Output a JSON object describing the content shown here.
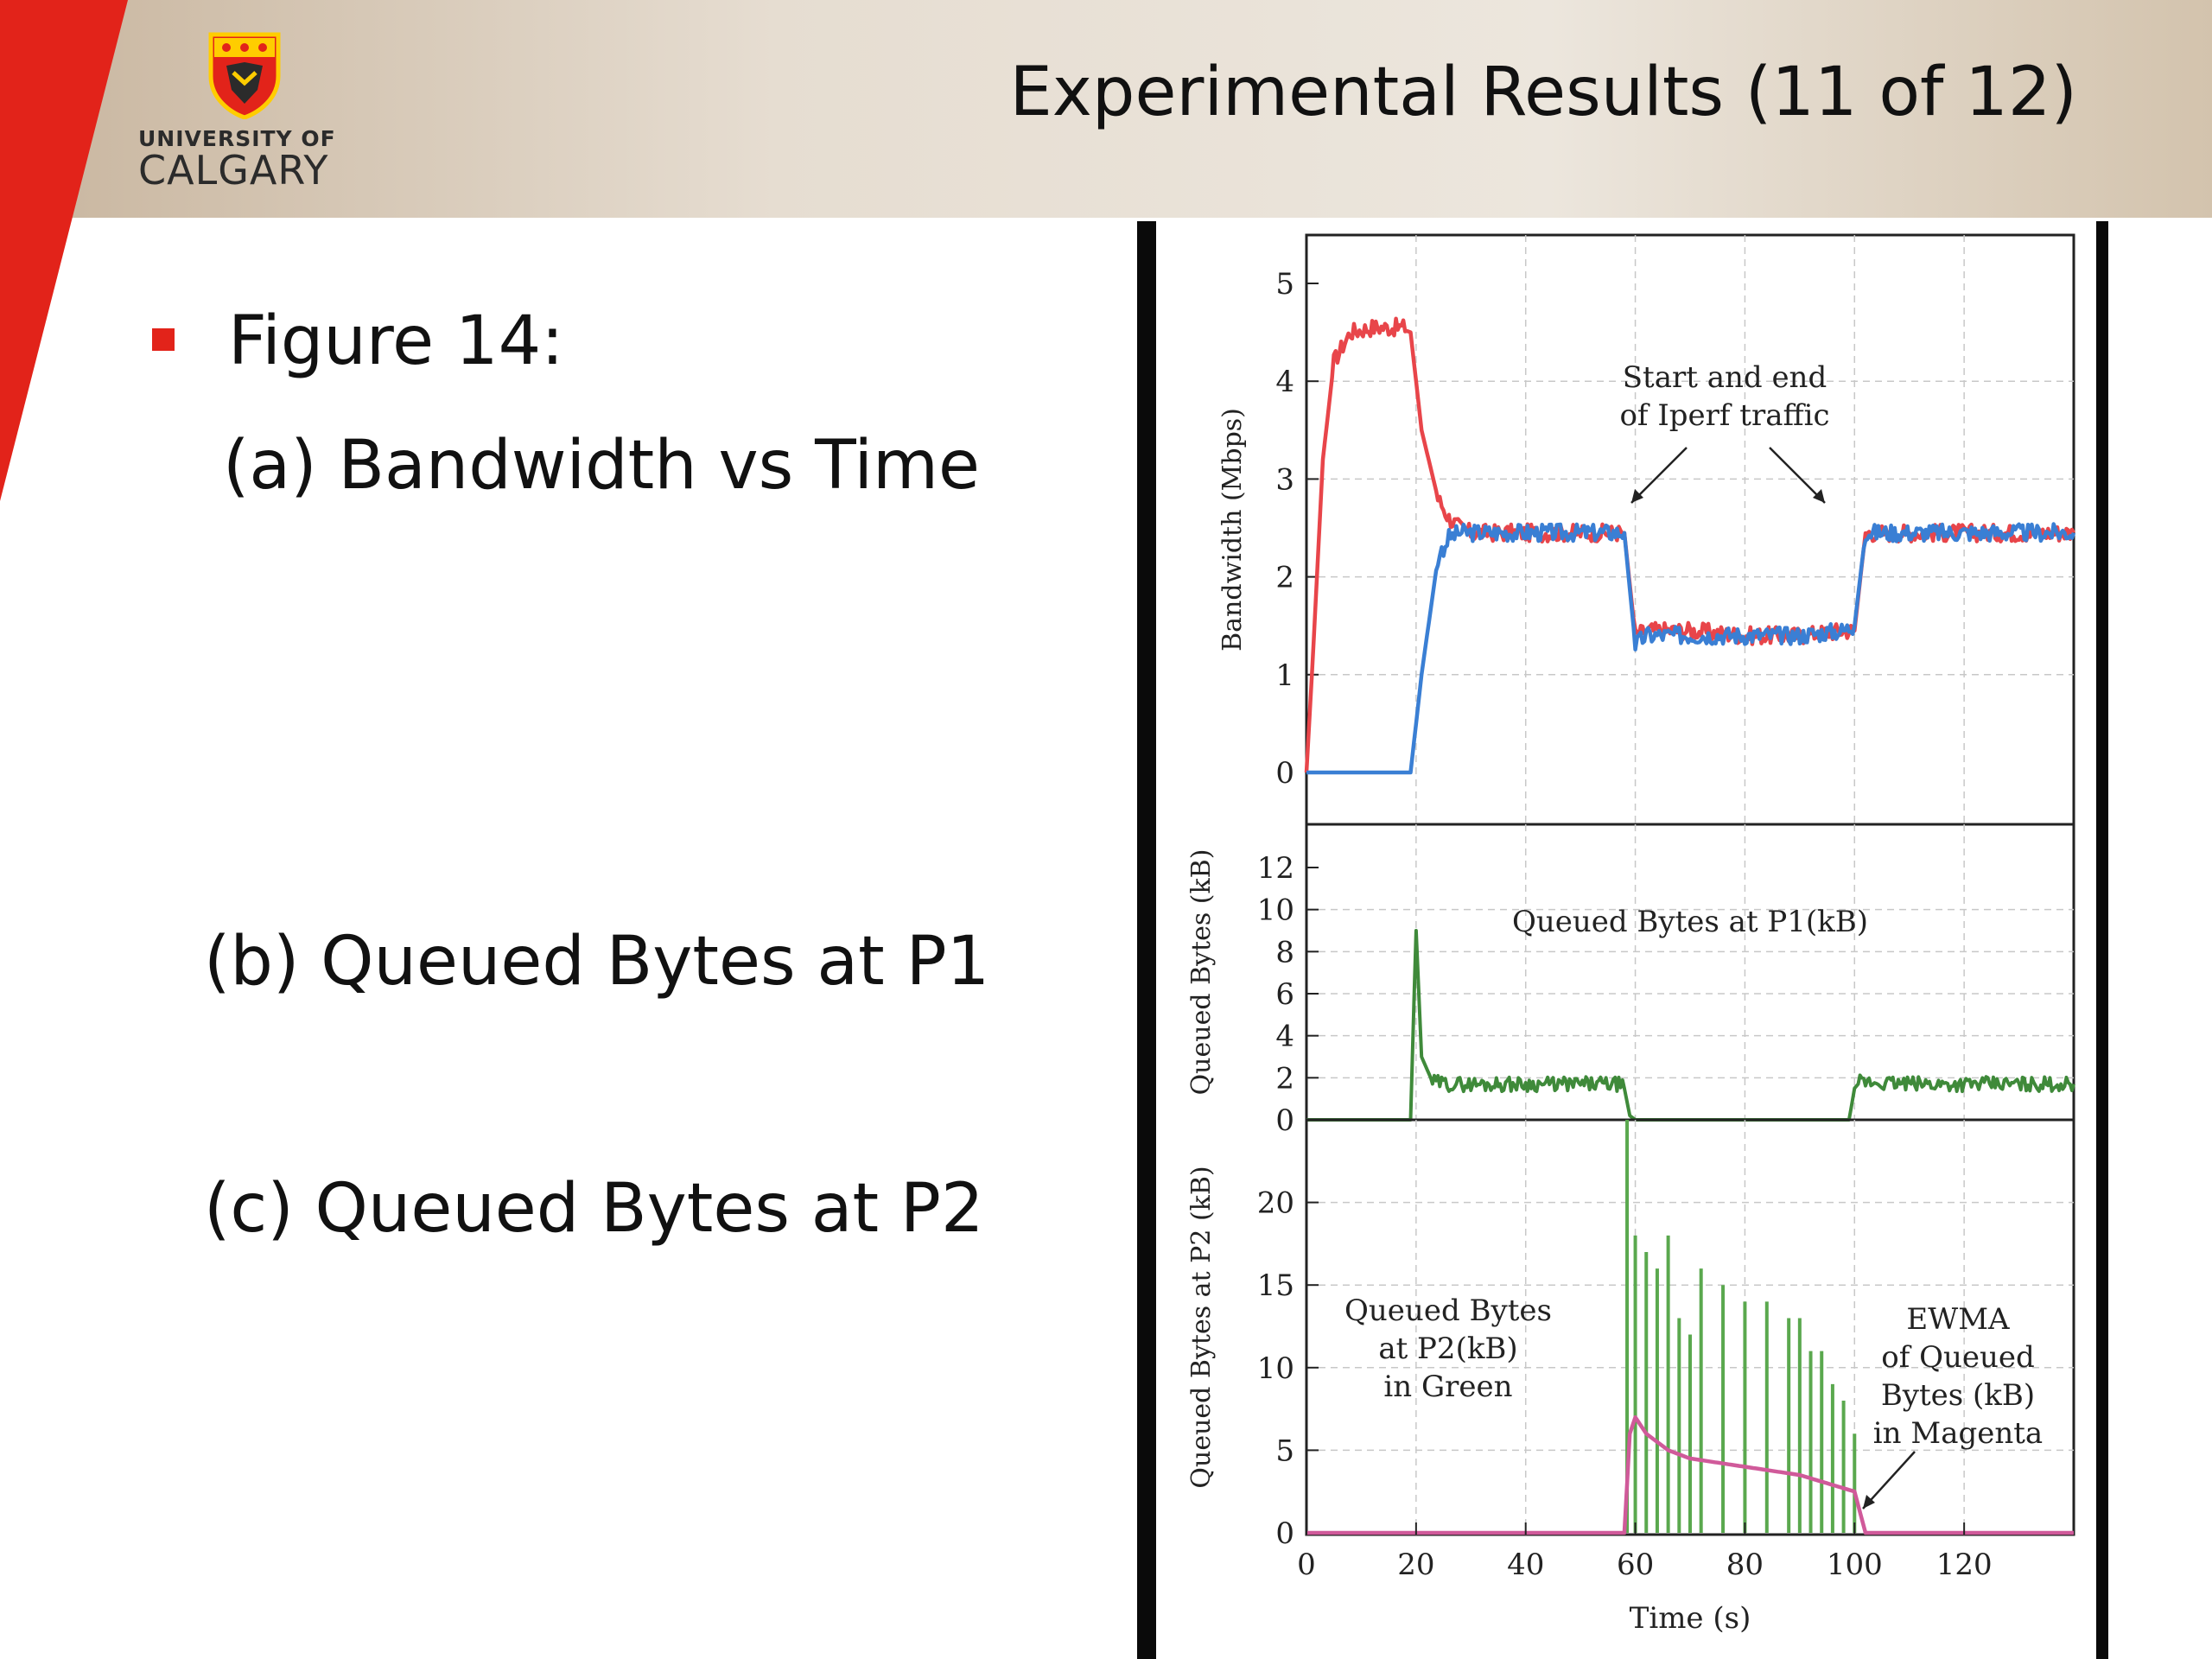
{
  "slide": {
    "title": "Experimental Results (11 of 12)",
    "logo_text_top": "UNIVERSITY OF",
    "logo_text_bottom": "CALGARY",
    "bullet": "Figure 14:",
    "item_a": "(a) Bandwidth vs Time",
    "item_b": "(b) Queued Bytes at P1",
    "item_c": "(c) Queued Bytes at P2",
    "colors": {
      "accent_red": "#e2231a",
      "bullet": "#e2231a"
    }
  },
  "chart_data": [
    {
      "type": "line",
      "panel": "a",
      "ylabel": "Bandwidth (Mbps)",
      "xlim": [
        0,
        140
      ],
      "ylim": [
        0,
        5
      ],
      "yticks": [
        "0",
        "1",
        "2",
        "3",
        "4",
        "5"
      ],
      "annotation": [
        "Start and end",
        "of Iperf traffic"
      ],
      "grid": true,
      "series": [
        {
          "color": "#e8454a",
          "x": [
            0,
            1,
            3,
            5,
            8,
            12,
            18,
            19,
            20,
            21,
            24,
            26,
            28,
            30,
            35,
            40,
            50,
            57,
            58,
            60,
            62,
            70,
            80,
            90,
            98,
            100,
            102,
            110,
            120,
            130,
            140
          ],
          "y": [
            0,
            1.0,
            3.2,
            4.2,
            4.5,
            4.55,
            4.55,
            4.5,
            4.0,
            3.5,
            2.8,
            2.6,
            2.5,
            2.45,
            2.45,
            2.45,
            2.45,
            2.45,
            2.45,
            1.4,
            1.45,
            1.45,
            1.4,
            1.4,
            1.45,
            1.45,
            2.45,
            2.45,
            2.45,
            2.45,
            2.45
          ]
        },
        {
          "color": "#3a7fd4",
          "x": [
            0,
            18,
            19,
            20,
            21,
            22,
            24,
            26,
            28,
            30,
            40,
            50,
            57,
            58,
            60,
            62,
            70,
            80,
            90,
            98,
            100,
            102,
            110,
            120,
            130,
            140
          ],
          "y": [
            0,
            0,
            0,
            0.5,
            1.0,
            1.4,
            2.2,
            2.4,
            2.45,
            2.45,
            2.45,
            2.45,
            2.45,
            2.45,
            1.3,
            1.4,
            1.4,
            1.4,
            1.4,
            1.45,
            1.5,
            2.45,
            2.45,
            2.45,
            2.45,
            2.45
          ]
        }
      ]
    },
    {
      "type": "line",
      "panel": "b",
      "ylabel": "Queued Bytes (kB)",
      "xlim": [
        0,
        140
      ],
      "ylim": [
        0,
        12
      ],
      "yticks": [
        "0",
        "2",
        "4",
        "6",
        "8",
        "10",
        "12"
      ],
      "annotation": [
        "Queued Bytes at P1(kB)"
      ],
      "grid": true,
      "series": [
        {
          "color": "#3f8a3a",
          "x": [
            0,
            18,
            19,
            20,
            21,
            23,
            26,
            30,
            40,
            50,
            57,
            58,
            59,
            60,
            80,
            99,
            100,
            101,
            110,
            120,
            130,
            140
          ],
          "y": [
            0,
            0,
            0,
            9.0,
            3.0,
            1.8,
            1.7,
            1.7,
            1.7,
            1.7,
            1.7,
            1.5,
            0.2,
            0,
            0,
            0,
            1.5,
            1.8,
            1.7,
            1.7,
            1.7,
            1.7
          ]
        }
      ]
    },
    {
      "type": "line",
      "panel": "c",
      "ylabel": "Queued Bytes at P2 (kB)",
      "xlabel": "Time (s)",
      "xlim": [
        0,
        140
      ],
      "ylim": [
        0,
        25
      ],
      "xticks": [
        "0",
        "20",
        "40",
        "60",
        "80",
        "100",
        "120"
      ],
      "yticks": [
        "0",
        "5",
        "10",
        "15",
        "20"
      ],
      "annotations": [
        [
          "Queued Bytes",
          "at P2(kB)",
          "in Green"
        ],
        [
          "EWMA",
          "of Queued",
          "Bytes (kB)",
          "in Magenta"
        ]
      ],
      "grid": true,
      "series": [
        {
          "color": "#5aa84e",
          "x": [
            58.5,
            60,
            62,
            64,
            66,
            68,
            70,
            72,
            76,
            80,
            84,
            88,
            90,
            92,
            94,
            96,
            98,
            100
          ],
          "y": [
            25,
            18,
            17,
            16,
            18,
            13,
            12,
            16,
            15,
            14,
            14,
            13,
            13,
            11,
            11,
            9,
            8,
            6
          ]
        },
        {
          "color": "#d05a9a",
          "x": [
            0,
            58,
            59,
            60,
            62,
            66,
            70,
            80,
            90,
            100,
            102,
            140
          ],
          "y": [
            0,
            0,
            6,
            7,
            6,
            5,
            4.5,
            4,
            3.5,
            2.5,
            0,
            0
          ]
        }
      ]
    }
  ]
}
